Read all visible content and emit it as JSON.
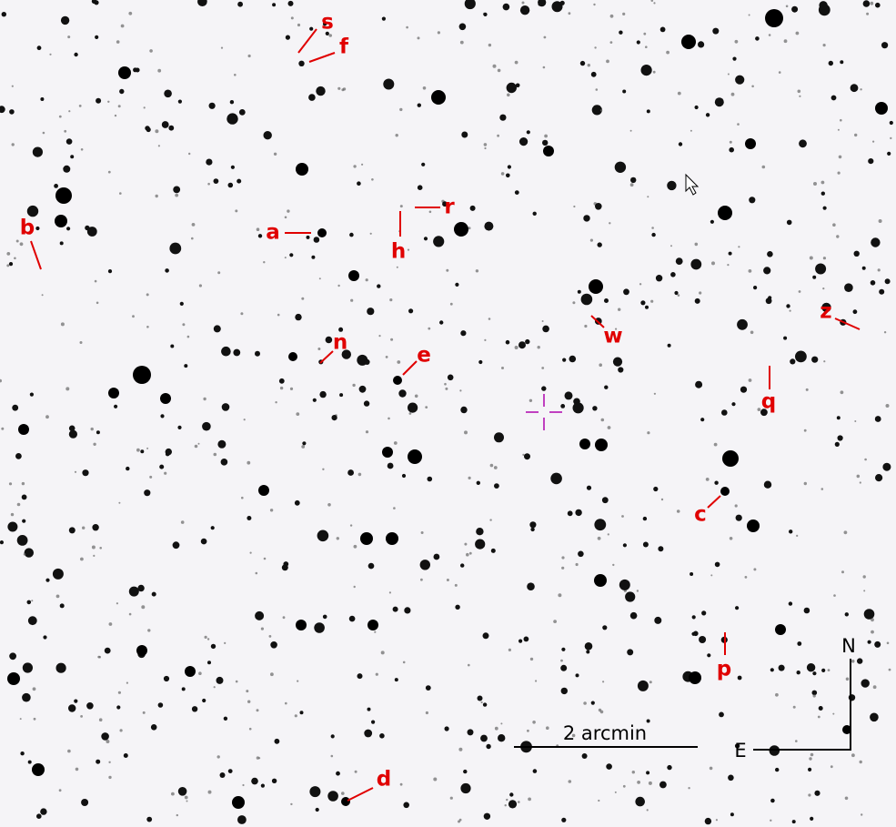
{
  "markers": [
    "s",
    "f",
    "r",
    "h",
    "a",
    "b",
    "n",
    "e",
    "w",
    "z",
    "q",
    "c",
    "p",
    "d"
  ],
  "compass": {
    "north": "N",
    "east": "E"
  },
  "scale_bar": "2 arcmin"
}
